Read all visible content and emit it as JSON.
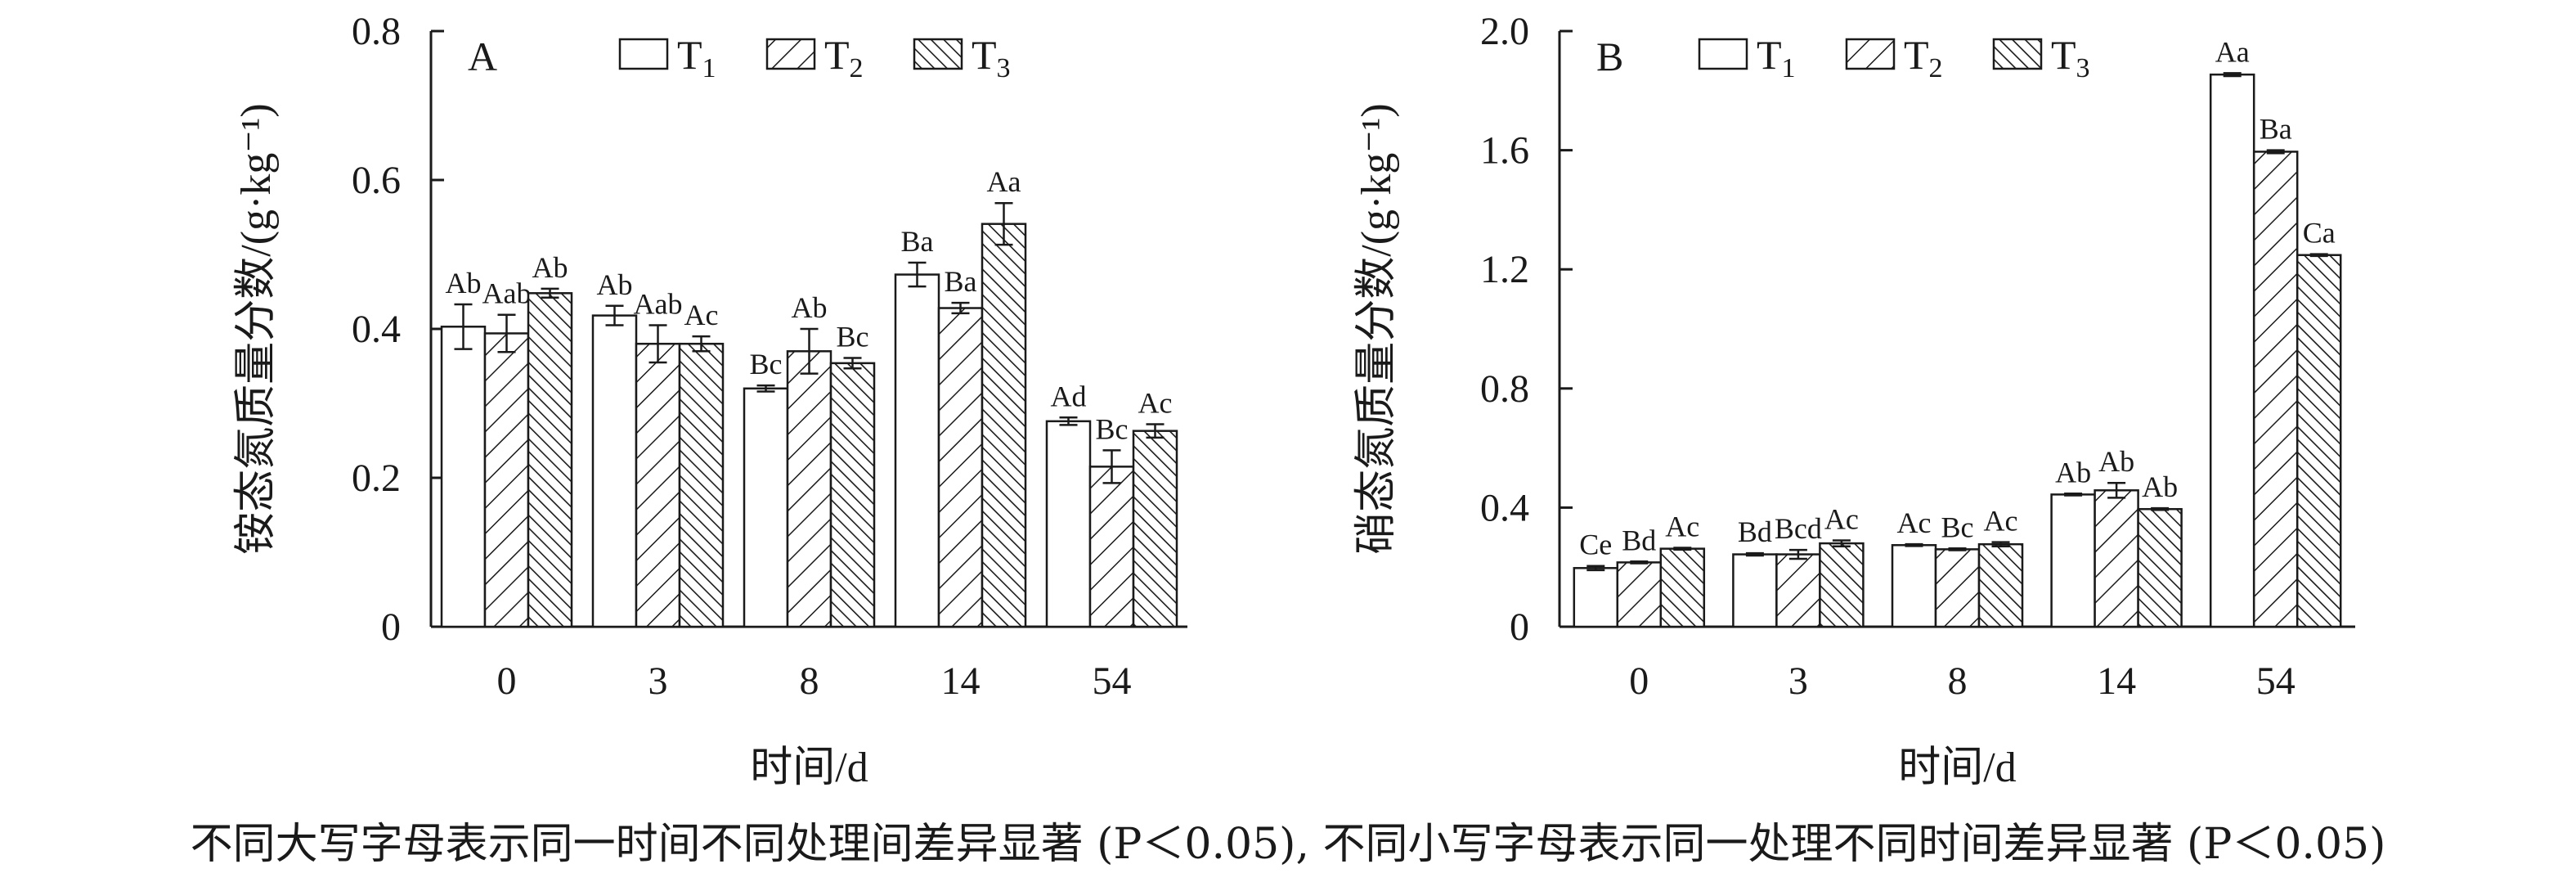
{
  "caption": {
    "text": "不同大写字母表示同一时间不同处理间差异显著 (P＜0.05), 不同小写字母表示同一处理不同时间差异显著 (P＜0.05)"
  },
  "chart_data": [
    {
      "type": "bar",
      "panel_label": "A",
      "ylabel": "铵态氮质量分数/(g·kg⁻¹)",
      "xlabel": "时间/d",
      "categories": [
        "0",
        "3",
        "8",
        "14",
        "54"
      ],
      "ylim": [
        0,
        0.8
      ],
      "yticks": [
        "0",
        "0.2",
        "0.4",
        "0.6",
        "0.8"
      ],
      "legend_position": "top",
      "series": [
        {
          "name": "T1",
          "pattern": "none",
          "values": [
            0.403,
            0.418,
            0.32,
            0.473,
            0.276
          ],
          "errors": [
            0.03,
            0.013,
            0.004,
            0.016,
            0.005
          ],
          "labels": [
            "Ab",
            "Ab",
            "Bc",
            "Ba",
            "Ad"
          ]
        },
        {
          "name": "T2",
          "pattern": "hatch-forward",
          "values": [
            0.394,
            0.38,
            0.37,
            0.428,
            0.215
          ],
          "errors": [
            0.025,
            0.025,
            0.03,
            0.007,
            0.022
          ],
          "labels": [
            "Aab",
            "Aab",
            "Ab",
            "Ba",
            "Bc"
          ]
        },
        {
          "name": "T3",
          "pattern": "hatch-dense-back",
          "values": [
            0.448,
            0.38,
            0.354,
            0.541,
            0.263
          ],
          "errors": [
            0.006,
            0.01,
            0.007,
            0.028,
            0.009
          ],
          "labels": [
            "Ab",
            "Ac",
            "Bc",
            "Aa",
            "Ac"
          ]
        }
      ]
    },
    {
      "type": "bar",
      "panel_label": "B",
      "ylabel": "硝态氮质量分数/(g·kg⁻¹)",
      "xlabel": "时间/d",
      "categories": [
        "0",
        "3",
        "8",
        "14",
        "54"
      ],
      "ylim": [
        0,
        2.0
      ],
      "yticks": [
        "0",
        "0.4",
        "0.8",
        "1.2",
        "1.6",
        "2.0"
      ],
      "legend_position": "top",
      "series": [
        {
          "name": "T1",
          "pattern": "none",
          "values": [
            0.197,
            0.243,
            0.274,
            0.444,
            1.854
          ],
          "errors": [
            0.007,
            0.004,
            0.003,
            0.003,
            0.005
          ],
          "labels": [
            "Ce",
            "Bd",
            "Ac",
            "Ab",
            "Aa"
          ]
        },
        {
          "name": "T2",
          "pattern": "hatch-forward",
          "values": [
            0.216,
            0.243,
            0.26,
            0.458,
            1.595
          ],
          "errors": [
            0.003,
            0.015,
            0.003,
            0.025,
            0.005
          ],
          "labels": [
            "Bd",
            "Bcd",
            "Bc",
            "Ab",
            "Ba"
          ]
        },
        {
          "name": "T3",
          "pattern": "hatch-dense-back",
          "values": [
            0.262,
            0.28,
            0.277,
            0.395,
            1.248
          ],
          "errors": [
            0.003,
            0.01,
            0.007,
            0.003,
            0.003
          ],
          "labels": [
            "Ac",
            "Ac",
            "Ac",
            "Ab",
            "Ca"
          ]
        }
      ]
    }
  ]
}
